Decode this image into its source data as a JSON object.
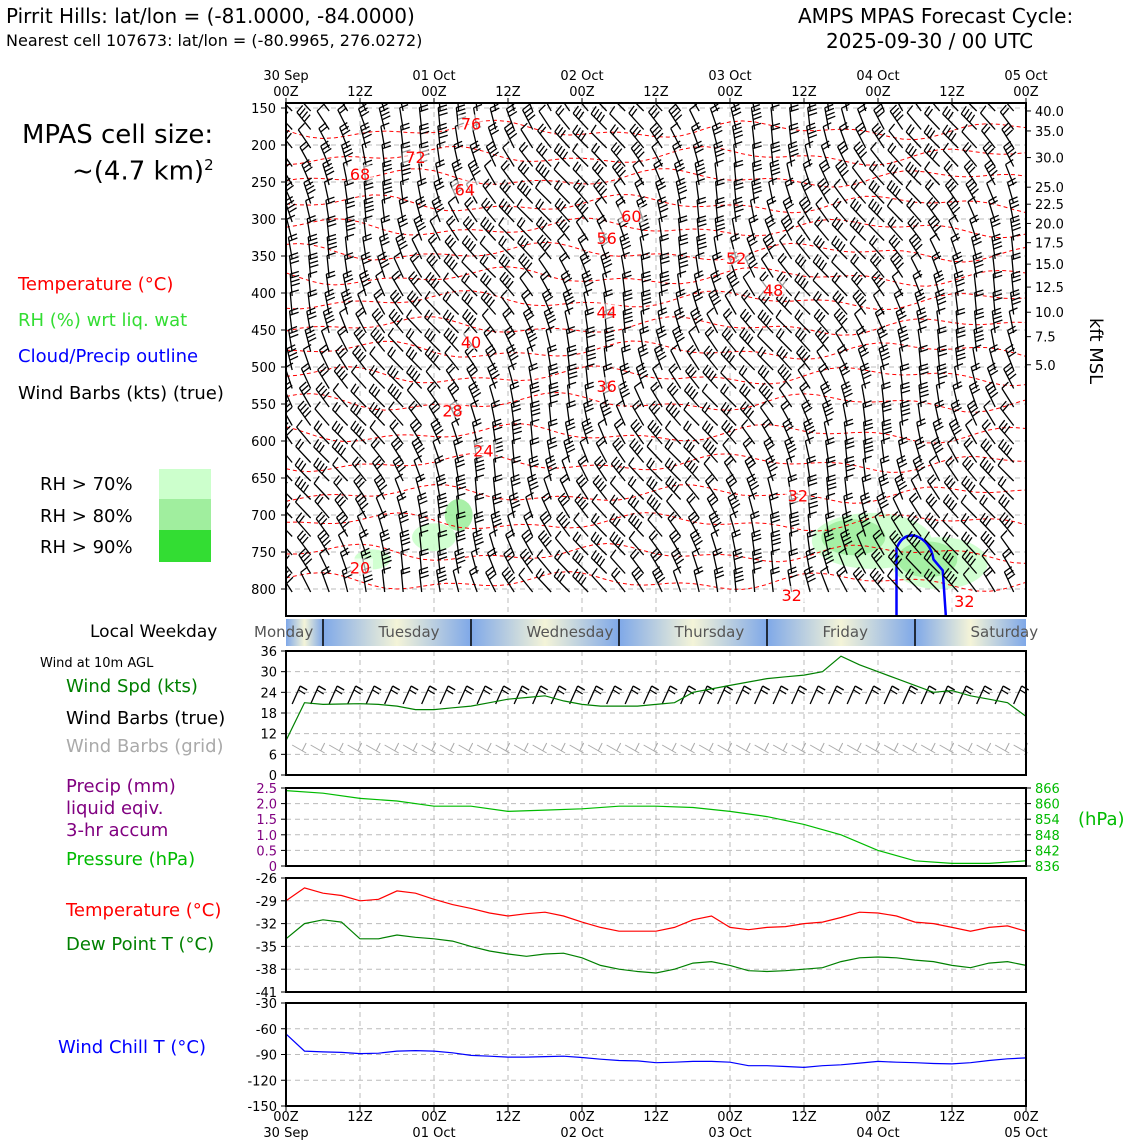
{
  "header": {
    "title_left": "Pirrit Hills: lat/lon = (-81.0000, -84.0000)",
    "subtitle_left": "Nearest cell 107673: lat/lon = (-80.9965, 276.0272)",
    "title_right_1": "AMPS MPAS Forecast Cycle:",
    "title_right_2": "2025-09-30 / 00 UTC"
  },
  "left_panel": {
    "cell_size_1": "MPAS cell size:",
    "cell_size_2": "~(4.7 km)",
    "cell_size_sup": "2",
    "legend_temperature": "Temperature (°C)",
    "legend_rh": "RH (%) wrt liq. wat",
    "legend_cloud": "Cloud/Precip outline",
    "legend_wind": "Wind Barbs (kts) (true)",
    "rh_70": "RH > 70%",
    "rh_80": "RH > 80%",
    "rh_90": "RH > 90%",
    "local_weekday": "Local Weekday",
    "wind_at": "Wind at 10m AGL",
    "wind_spd": "Wind Spd (kts)",
    "wind_barbs_true": "Wind Barbs (true)",
    "wind_barbs_grid": "Wind Barbs (grid)",
    "precip_1": "Precip (mm)",
    "precip_2": "liquid eqiv.",
    "precip_3": "3-hr accum",
    "pressure": "Pressure (hPa)",
    "temperature": "Temperature (°C)",
    "dewpoint": "Dew Point T (°C)",
    "windchill": "Wind Chill T (°C)",
    "hpa_label": "(hPa)"
  },
  "colors": {
    "temp": "#ff0000",
    "rh": "#33dd33",
    "cloud": "#0000ff",
    "green": "#008000",
    "purple": "#800080",
    "grid_barb": "#aaaaaa",
    "rh70": "#ccffcc",
    "rh80": "#a0ee9e",
    "rh90": "#33dd33",
    "pressure": "#00bb00"
  },
  "chart_data": [
    {
      "type": "line",
      "name": "time-height cross section",
      "time_axis_top_labels": [
        [
          "30 Sep",
          "00Z"
        ],
        [
          "",
          "12Z"
        ],
        [
          "01 Oct",
          "00Z"
        ],
        [
          "",
          "12Z"
        ],
        [
          "02 Oct",
          "00Z"
        ],
        [
          "",
          "12Z"
        ],
        [
          "03 Oct",
          "00Z"
        ],
        [
          "",
          "12Z"
        ],
        [
          "04 Oct",
          "00Z"
        ],
        [
          "",
          "12Z"
        ],
        [
          "05 Oct",
          "00Z"
        ]
      ],
      "pressure_levels": [
        150,
        200,
        250,
        300,
        350,
        400,
        450,
        500,
        550,
        600,
        650,
        700,
        750,
        800
      ],
      "kft_msl_ticks": [
        {
          "label": "40.0",
          "p": 154
        },
        {
          "label": "35.0",
          "p": 181
        },
        {
          "label": "30.0",
          "p": 217
        },
        {
          "label": "25.0",
          "p": 257
        },
        {
          "label": "22.5",
          "p": 280
        },
        {
          "label": "20.0",
          "p": 306
        },
        {
          "label": "17.5",
          "p": 332
        },
        {
          "label": "15.0",
          "p": 361
        },
        {
          "label": "12.5",
          "p": 392
        },
        {
          "label": "10.0",
          "p": 426
        },
        {
          "label": "7.5",
          "p": 459
        },
        {
          "label": "5.0",
          "p": 497
        }
      ],
      "right_axis_label": "kft MSL",
      "temperature_contours": [
        {
          "label": "76",
          "hour": 30,
          "p": 175
        },
        {
          "label": "72",
          "hour": 21,
          "p": 220
        },
        {
          "label": "68",
          "hour": 12,
          "p": 243
        },
        {
          "label": "64",
          "hour": 29,
          "p": 264
        },
        {
          "label": "60",
          "hour": 56,
          "p": 300
        },
        {
          "label": "56",
          "hour": 52,
          "p": 330
        },
        {
          "label": "52",
          "hour": 73,
          "p": 357
        },
        {
          "label": "48",
          "hour": 79,
          "p": 400
        },
        {
          "label": "44",
          "hour": 52,
          "p": 430
        },
        {
          "label": "40",
          "hour": 30,
          "p": 470
        },
        {
          "label": "36",
          "hour": 52,
          "p": 530
        },
        {
          "label": "28",
          "hour": 27,
          "p": 563
        },
        {
          "label": "24",
          "hour": 32,
          "p": 617
        },
        {
          "label": "32",
          "hour": 83,
          "p": 678
        },
        {
          "label": "20",
          "hour": 12,
          "p": 775
        },
        {
          "label": "32",
          "hour": 82,
          "p": 812
        },
        {
          "label": "32",
          "hour": 110,
          "p": 820
        }
      ]
    },
    {
      "type": "table",
      "name": "local weekday",
      "days": [
        {
          "label": "Monday",
          "hour": 0
        },
        {
          "label": "Tuesday",
          "hour": 17
        },
        {
          "label": "Wednesday",
          "hour": 41
        },
        {
          "label": "Thursday",
          "hour": 65
        },
        {
          "label": "Friday",
          "hour": 89
        },
        {
          "label": "Saturday",
          "hour": 113
        }
      ],
      "boundaries_hour": [
        6,
        30,
        54,
        78,
        102
      ]
    },
    {
      "type": "line",
      "name": "wind speed",
      "ylim": [
        0,
        36
      ],
      "yticks": [
        0,
        6,
        12,
        18,
        24,
        30,
        36
      ],
      "x_hours": [
        0,
        3,
        6,
        9,
        12,
        15,
        18,
        21,
        24,
        27,
        30,
        33,
        36,
        39,
        42,
        45,
        48,
        51,
        54,
        57,
        60,
        63,
        66,
        69,
        72,
        75,
        78,
        81,
        84,
        87,
        90,
        93,
        96,
        99,
        102,
        105,
        108,
        111,
        114,
        117,
        120
      ],
      "wind_speed_kts": [
        10,
        21,
        20.5,
        20.6,
        20.7,
        20.5,
        20,
        19,
        19,
        19.5,
        20,
        21,
        22,
        22.5,
        23,
        21.5,
        20.5,
        20,
        20,
        20,
        20.5,
        21,
        24,
        25,
        26,
        27,
        28,
        28.5,
        29,
        30,
        34.5,
        32,
        30,
        28,
        26,
        24,
        24.5,
        23,
        22,
        21,
        17
      ]
    },
    {
      "type": "line",
      "name": "precip and pressure",
      "precip_ylim": [
        0,
        2.5
      ],
      "precip_yticks": [
        "0",
        "0.5",
        "1.0",
        "1.5",
        "2.0",
        "2.5"
      ],
      "pressure_ylim": [
        836,
        866
      ],
      "pressure_yticks": [
        "836",
        "842",
        "848",
        "854",
        "860",
        "866"
      ],
      "x_hours": [
        0,
        6,
        12,
        18,
        24,
        30,
        36,
        42,
        48,
        54,
        60,
        66,
        72,
        78,
        84,
        90,
        96,
        102,
        108,
        114,
        120
      ],
      "pressure_hpa": [
        865,
        864,
        862,
        861,
        859,
        859,
        857,
        857.5,
        858,
        859,
        859,
        858.5,
        857,
        855,
        852,
        848,
        842,
        838,
        837,
        837,
        838
      ],
      "precip_mm": []
    },
    {
      "type": "line",
      "name": "temperature and dew point",
      "ylim": [
        -41,
        -26
      ],
      "yticks": [
        -26,
        -29,
        -32,
        -35,
        -38,
        -41
      ],
      "x_hours": [
        0,
        3,
        6,
        9,
        12,
        15,
        18,
        21,
        24,
        27,
        30,
        33,
        36,
        39,
        42,
        45,
        48,
        51,
        54,
        57,
        60,
        63,
        66,
        69,
        72,
        75,
        78,
        81,
        84,
        87,
        90,
        93,
        96,
        99,
        102,
        105,
        108,
        111,
        114,
        117,
        120
      ],
      "temperature": [
        -29,
        -27.3,
        -28,
        -28.3,
        -29,
        -28.8,
        -27.7,
        -28,
        -28.8,
        -29.5,
        -30,
        -30.6,
        -31,
        -30.7,
        -30.5,
        -31,
        -31.8,
        -32.5,
        -33,
        -33,
        -33,
        -32.5,
        -31.5,
        -31,
        -32.5,
        -32.8,
        -32.5,
        -32.4,
        -32,
        -31.8,
        -31.2,
        -30.5,
        -30.6,
        -31,
        -31.8,
        -32,
        -32.5,
        -33,
        -32.5,
        -32.3,
        -33
      ],
      "dew_point": [
        -34,
        -32,
        -31.5,
        -31.8,
        -34,
        -34,
        -33.5,
        -33.8,
        -34,
        -34.3,
        -35,
        -35.6,
        -36,
        -36.3,
        -36,
        -35.9,
        -36.5,
        -37.5,
        -38,
        -38.3,
        -38.5,
        -38,
        -37.2,
        -37,
        -37.5,
        -38.2,
        -38.3,
        -38.2,
        -38,
        -37.8,
        -37,
        -36.5,
        -36.4,
        -36.5,
        -36.8,
        -37,
        -37.5,
        -37.8,
        -37.2,
        -37,
        -37.5
      ]
    },
    {
      "type": "line",
      "name": "wind chill",
      "ylim": [
        -150,
        -30
      ],
      "yticks": [
        -30,
        -60,
        -90,
        -120,
        -150
      ],
      "x_hours": [
        0,
        3,
        6,
        9,
        12,
        15,
        18,
        21,
        24,
        27,
        30,
        33,
        36,
        39,
        42,
        45,
        48,
        51,
        54,
        57,
        60,
        63,
        66,
        69,
        72,
        75,
        78,
        81,
        84,
        87,
        90,
        93,
        96,
        99,
        102,
        105,
        108,
        111,
        114,
        117,
        120
      ],
      "wind_chill": [
        -66,
        -86,
        -87,
        -87.5,
        -89,
        -88.5,
        -86,
        -85.5,
        -86,
        -88,
        -91,
        -92,
        -93,
        -93,
        -92.5,
        -92,
        -93.5,
        -95.5,
        -97,
        -97.5,
        -99.5,
        -99,
        -98,
        -98,
        -99,
        -103,
        -103,
        -104,
        -105,
        -103,
        -102,
        -100,
        -98,
        -99,
        -99.5,
        -100.5,
        -101,
        -99.5,
        -97,
        -95,
        -94
      ]
    }
  ],
  "x_axis_bottom": [
    [
      "00Z",
      "30 Sep"
    ],
    [
      "12Z",
      ""
    ],
    [
      "00Z",
      "01 Oct"
    ],
    [
      "12Z",
      ""
    ],
    [
      "00Z",
      "02 Oct"
    ],
    [
      "12Z",
      ""
    ],
    [
      "00Z",
      "03 Oct"
    ],
    [
      "12Z",
      ""
    ],
    [
      "00Z",
      "04 Oct"
    ],
    [
      "12Z",
      ""
    ],
    [
      "00Z",
      "05 Oct"
    ]
  ]
}
